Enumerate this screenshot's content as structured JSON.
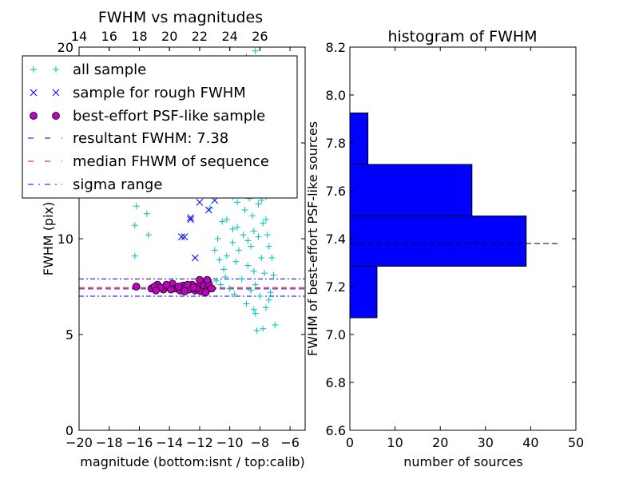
{
  "chart_data": [
    {
      "type": "scatter",
      "title": "FWHM vs magnitudes",
      "xlabel": "magnitude (bottom:isnt / top:calib)",
      "ylabel": "FWHM (pix)",
      "xlim": [
        -20,
        -5
      ],
      "ylim": [
        0,
        20
      ],
      "x_ticks": [
        -20,
        -18,
        -16,
        -14,
        -12,
        -10,
        -8,
        -6
      ],
      "x_tick_labels": [
        "−20",
        "−18",
        "−16",
        "−14",
        "−12",
        "−10",
        "−8",
        "−6"
      ],
      "y_ticks": [
        0,
        5,
        10,
        15,
        20
      ],
      "y_tick_labels": [
        "0",
        "5",
        "10",
        "15",
        "20"
      ],
      "top_axis_ticks": [
        14,
        16,
        18,
        20,
        22,
        24,
        26
      ],
      "top_axis_tick_labels": [
        "14",
        "16",
        "18",
        "20",
        "22",
        "24",
        "26"
      ],
      "top_axis_offset": 34,
      "legend": {
        "placement": "upper-left",
        "entries": [
          "all sample",
          "sample for rough FWHM",
          "best-effort PSF-like sample",
          "resultant FWHM: 7.38",
          "median FHWM of sequence",
          "sigma range"
        ]
      },
      "colors": {
        "all_sample": "#00BFBF",
        "rough_sample": "#0000FF",
        "psf_sample": "#BF00BF",
        "resultant": "#0000FF",
        "median": "#FF0000",
        "sigma": "#0000FF"
      },
      "series": [
        {
          "name": "all sample",
          "marker": "plus",
          "points": [
            [
              -16.2,
              11.7
            ],
            [
              -16.3,
              10.7
            ],
            [
              -16.3,
              9.1
            ],
            [
              -15.5,
              11.3
            ],
            [
              -15.4,
              10.2
            ],
            [
              -14.4,
              13.3
            ],
            [
              -12.7,
              12.7
            ],
            [
              -11.3,
              11.6
            ],
            [
              -10.8,
              10.0
            ],
            [
              -10.2,
              11.0
            ],
            [
              -9.8,
              12.2
            ],
            [
              -9.6,
              16.4
            ],
            [
              -9.4,
              14.2
            ],
            [
              -9.1,
              10.2
            ],
            [
              -8.9,
              19.5
            ],
            [
              -8.7,
              14.0
            ],
            [
              -8.5,
              12.5
            ],
            [
              -8.3,
              19.8
            ],
            [
              -8.1,
              17.0
            ],
            [
              -7.9,
              15.5
            ],
            [
              -7.6,
              12.2
            ],
            [
              -7.2,
              9.0
            ],
            [
              -7.4,
              6.8
            ],
            [
              -7.0,
              5.5
            ],
            [
              -7.8,
              5.3
            ],
            [
              -8.2,
              5.2
            ],
            [
              -8.4,
              6.3
            ],
            [
              -8.6,
              9.6
            ],
            [
              -8.8,
              8.6
            ],
            [
              -9.0,
              11.5
            ],
            [
              -9.2,
              7.9
            ],
            [
              -9.4,
              9.4
            ],
            [
              -9.6,
              8.8
            ],
            [
              -9.8,
              10.5
            ],
            [
              -10.0,
              7.4
            ],
            [
              -10.2,
              9.1
            ],
            [
              -10.4,
              8.4
            ],
            [
              -10.6,
              7.6
            ],
            [
              -10.9,
              7.8
            ],
            [
              -11.2,
              7.5
            ],
            [
              -11.5,
              7.3
            ],
            [
              -8.0,
              7.0
            ],
            [
              -8.3,
              7.6
            ],
            [
              -7.7,
              8.2
            ],
            [
              -7.9,
              9.0
            ],
            [
              -8.1,
              10.1
            ],
            [
              -8.5,
              11.2
            ],
            [
              -8.7,
              12.1
            ],
            [
              -9.0,
              13.4
            ],
            [
              -9.3,
              12.9
            ],
            [
              -8.2,
              13.8
            ],
            [
              -8.0,
              14.6
            ],
            [
              -7.8,
              13.1
            ],
            [
              -8.4,
              15.0
            ],
            [
              -8.6,
              16.1
            ],
            [
              -9.1,
              15.4
            ],
            [
              -7.6,
              11.0
            ],
            [
              -7.5,
              10.2
            ],
            [
              -8.8,
              9.9
            ],
            [
              -9.5,
              11.9
            ],
            [
              -10.1,
              12.8
            ],
            [
              -10.5,
              10.9
            ],
            [
              -9.7,
              7.1
            ],
            [
              -8.9,
              6.6
            ],
            [
              -8.3,
              6.1
            ],
            [
              -7.6,
              6.4
            ],
            [
              -7.3,
              7.2
            ],
            [
              -7.1,
              8.1
            ],
            [
              -7.4,
              9.6
            ],
            [
              -7.8,
              10.8
            ],
            [
              -8.1,
              11.8
            ],
            [
              -8.3,
              12.6
            ],
            [
              -8.6,
              13.2
            ],
            [
              -8.9,
              14.6
            ],
            [
              -9.2,
              16.9
            ],
            [
              -8.5,
              17.8
            ],
            [
              -8.2,
              18.5
            ],
            [
              -8.7,
              18.9
            ],
            [
              -9.3,
              18.0
            ],
            [
              -9.9,
              13.6
            ],
            [
              -10.3,
              8.0
            ],
            [
              -10.7,
              8.9
            ],
            [
              -11.0,
              9.4
            ],
            [
              -9.5,
              10.6
            ],
            [
              -8.1,
              16.4
            ],
            [
              -7.7,
              14.1
            ],
            [
              -7.5,
              12.9
            ],
            [
              -7.9,
              12.0
            ],
            [
              -8.4,
              8.3
            ],
            [
              -8.6,
              7.3
            ],
            [
              -9.8,
              9.8
            ],
            [
              -10.6,
              13.9
            ],
            [
              -9.0,
              17.4
            ],
            [
              -8.8,
              16.9
            ],
            [
              -8.4,
              10.4
            ]
          ]
        },
        {
          "name": "sample for rough FWHM",
          "marker": "x",
          "points": [
            [
              -12.6,
              11.1
            ],
            [
              -12.6,
              11.0
            ],
            [
              -11.4,
              11.5
            ],
            [
              -12.0,
              11.9
            ],
            [
              -13.0,
              10.1
            ],
            [
              -13.2,
              10.1
            ],
            [
              -12.3,
              9.0
            ],
            [
              -11.0,
              12.0
            ],
            [
              -11.8,
              7.8
            ],
            [
              -11.4,
              7.7
            ]
          ]
        },
        {
          "name": "best-effort PSF-like sample",
          "marker": "circle",
          "points": [
            [
              -16.2,
              7.5
            ],
            [
              -15.2,
              7.4
            ],
            [
              -14.8,
              7.6
            ],
            [
              -14.4,
              7.35
            ],
            [
              -14.1,
              7.5
            ],
            [
              -13.8,
              7.65
            ],
            [
              -13.6,
              7.4
            ],
            [
              -13.3,
              7.3
            ],
            [
              -13.1,
              7.55
            ],
            [
              -12.9,
              7.45
            ],
            [
              -12.7,
              7.35
            ],
            [
              -12.5,
              7.6
            ],
            [
              -12.3,
              7.3
            ],
            [
              -12.1,
              7.5
            ],
            [
              -11.9,
              7.25
            ],
            [
              -11.7,
              7.55
            ],
            [
              -11.5,
              7.35
            ],
            [
              -11.3,
              7.45
            ],
            [
              -14.6,
              7.45
            ],
            [
              -13.9,
              7.35
            ],
            [
              -13.4,
              7.5
            ],
            [
              -12.8,
              7.6
            ],
            [
              -12.2,
              7.4
            ],
            [
              -11.6,
              7.2
            ],
            [
              -11.4,
              7.65
            ],
            [
              -11.2,
              7.4
            ],
            [
              -12.0,
              7.85
            ],
            [
              -11.5,
              7.85
            ],
            [
              -15.0,
              7.5
            ],
            [
              -14.2,
              7.6
            ],
            [
              -13.0,
              7.25
            ],
            [
              -12.4,
              7.45
            ],
            [
              -14.9,
              7.3
            ]
          ]
        }
      ],
      "lines": {
        "resultant_fwhm": 7.38,
        "median_fwhm": 7.45,
        "sigma_range": [
          7.0,
          7.9
        ]
      }
    },
    {
      "type": "bar",
      "orientation": "horizontal",
      "title": "histogram of FWHM",
      "xlabel": "number of sources",
      "ylabel": "FWHM of best-effort PSF-like sources",
      "xlim": [
        0,
        50
      ],
      "ylim": [
        6.6,
        8.2
      ],
      "x_ticks": [
        0,
        10,
        20,
        30,
        40,
        50
      ],
      "x_tick_labels": [
        "0",
        "10",
        "20",
        "30",
        "40",
        "50"
      ],
      "y_ticks": [
        6.6,
        6.8,
        7.0,
        7.2,
        7.4,
        7.6,
        7.8,
        8.0,
        8.2
      ],
      "y_tick_labels": [
        "6.6",
        "6.8",
        "7.0",
        "7.2",
        "7.4",
        "7.6",
        "7.8",
        "8.0",
        "8.2"
      ],
      "bar_color": "#0000FF",
      "bins": [
        {
          "from": 7.07,
          "to": 7.285,
          "count": 6
        },
        {
          "from": 7.285,
          "to": 7.495,
          "count": 39
        },
        {
          "from": 7.495,
          "to": 7.71,
          "count": 27
        },
        {
          "from": 7.71,
          "to": 7.925,
          "count": 4
        }
      ],
      "reference_line": 7.38
    }
  ]
}
